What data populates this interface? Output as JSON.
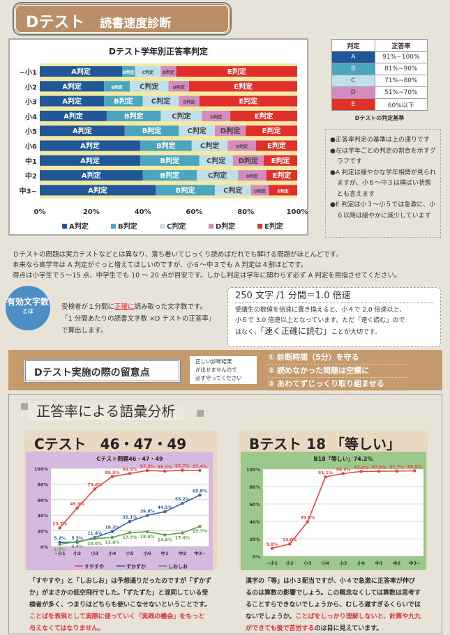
{
  "header": {
    "title": "Dテスト",
    "subtitle": "読書速度診断"
  },
  "criteria": {
    "headers": [
      "判定",
      "正答率"
    ],
    "rows": [
      {
        "grade": "A",
        "range": "91%~100%",
        "color": "#1f5799"
      },
      {
        "grade": "B",
        "range": "81%~90%",
        "color": "#4aa6bf"
      },
      {
        "grade": "C",
        "range": "71%~80%",
        "color": "#bfe0ea"
      },
      {
        "grade": "D",
        "range": "51%~70%",
        "color": "#d68bc0"
      },
      {
        "grade": "E",
        "range": "60%以下",
        "color": "#e1302b"
      }
    ],
    "caption": "Dテストの判定基準"
  },
  "notes": [
    "●正答率判定の基準は上の通りです",
    "●左は学年ごとの判定の割合を示すグラフです",
    "●A 判定は緩やかな学年相関が見られますが、小６～中３は横ばい状態とも言えます",
    "●E 判定は小３～小５では急激に、小６以降は緩やかに減少しています"
  ],
  "paragraph": [
    "Ｄテストの問題は実力テストなどとは異なり、落ち着いてじっくり読めばだれでも解ける問題がほとんどです。",
    "本来なら高学年は A 判定がぐっと増えてほしいのですが、小６～中３でも A 判定は４割ほどです。",
    "得点は小学生で５～15 点、中学生でも 10 ～ 20 点が目安です。しかし判定は学年に関わらず必ず A 判定を目指させてください。"
  ],
  "effective": {
    "badge": "有効文字数",
    "badge_sub": "とは",
    "line1a": "受検者が１分間に",
    "line1red": "正確に",
    "line1b": "読み取った文字数です。",
    "line2": "「1 分間あたりの読書文字数 ×D テストの正答率」",
    "line3": "で算出します。"
  },
  "speed": {
    "heading": "250 文字 /1 分間＝1.0 倍速",
    "text1": "受講生の数値を倍速に置き換えると、小４で 2.0 倍速以上、",
    "text2": "小６で 3.0 倍速以上となっています。ただ「速く読む」ので",
    "text3a": "はなく、",
    "text3big": "「速く正確に読む」",
    "text3b": "ことが大切です。"
  },
  "caution": {
    "title": "Dテスト実施の際の留意点",
    "note": [
      "正しい診断結果",
      "が出せませんので",
      "必ず守ってください"
    ],
    "rules": [
      "① 診断時間（5分）を守る",
      "② 読めなかった問題は空欄に",
      "③ あわてずじっくり取り組ませる"
    ]
  },
  "section": {
    "title": "正答率による語彙分析"
  },
  "c_panel": {
    "title": "Cテスト　46・47・49",
    "text": [
      "「すやすや」と「しおしお」は予想通りだったのですが「ずかず",
      "か」がまさかの低空飛行でした。「ずたずた」と混同している受",
      "検者が多く、つまりはどちらも使いこなせないということです。"
    ],
    "text_red": [
      "ことばを表現として実際に使っていく「実践の機会」をもっと",
      "与えなくてはなりません。"
    ]
  },
  "b_panel": {
    "title": "Bテスト 18 「等しい」",
    "text": [
      "漢字の「等」は小３配当ですが、小４で急激に正答率が伸び",
      "るのは算数の影響でしょう。この概念なくしては算数は思考す",
      "ることすらできないでしょうから、むしろ遅すぎるくらいでは"
    ],
    "text4a": "ないでしょうか。",
    "text4red": "ことばをしっかり理解しないと、計算や九九",
    "text5red": "ができても後で苦労する",
    "text5b": "のは目に見えています。"
  },
  "chart_data": [
    {
      "type": "bar",
      "stacked": true,
      "orientation": "horizontal",
      "title": "Dテスト学年別正答率判定",
      "categories": [
        "~小1",
        "小2",
        "小3",
        "小4",
        "小5",
        "小6",
        "中1",
        "中2",
        "中3~"
      ],
      "xlim": [
        0,
        100
      ],
      "xticks": [
        "0%",
        "20%",
        "40%",
        "60%",
        "80%",
        "100%"
      ],
      "legend_position": "bottom",
      "series": [
        {
          "name": "A判定",
          "label": "A判定",
          "color": "#1f5799",
          "values": [
            32,
            25,
            25,
            26,
            33,
            39,
            39,
            40,
            45
          ]
        },
        {
          "name": "B判定",
          "label": "B判定",
          "color": "#4aa6bf",
          "values": [
            5,
            10,
            15,
            21,
            21,
            20,
            23,
            21,
            23
          ]
        },
        {
          "name": "C判定",
          "label": "C判定",
          "color": "#bfe0ea",
          "values": [
            10,
            15,
            14,
            16,
            14,
            14,
            13,
            16,
            14
          ]
        },
        {
          "name": "D判定",
          "label": "D判定",
          "color": "#d68bc0",
          "values": [
            6,
            8,
            8,
            11,
            12,
            11,
            12,
            11,
            7
          ]
        },
        {
          "name": "E判定",
          "label": "E判定",
          "color": "#e1302b",
          "values": [
            47,
            42,
            38,
            26,
            20,
            16,
            13,
            12,
            11
          ]
        }
      ]
    },
    {
      "type": "line",
      "title": "Cテスト問題46・47・49",
      "categories": [
        "~小1",
        "小2",
        "小3",
        "小4",
        "小5",
        "小6",
        "中1",
        "中2",
        "中3~"
      ],
      "ylim": [
        0,
        100
      ],
      "yticks": [
        "0%",
        "20%",
        "40%",
        "60%",
        "80%",
        "100%"
      ],
      "grid": true,
      "legend_position": "bottom",
      "series": [
        {
          "name": "すやすや",
          "color": "#e2453f",
          "values": [
            23.7,
            49.3,
            73.6,
            89.5,
            93.5,
            97.3,
            96.5,
            97.7,
            97.4
          ],
          "labels": [
            "23.7%",
            "49.3%",
            "73.6%",
            "89.5%",
            "93.5%",
            "97.3%",
            "96.5%",
            "97.7%",
            "97.4%"
          ]
        },
        {
          "name": "ずかずか",
          "color": "#2f5fa8",
          "values": [
            5.2,
            5.5,
            11.4,
            19.3,
            32.1,
            39.8,
            44.5,
            55.2,
            65.8
          ],
          "labels": [
            "5.2%",
            "5.5%",
            "11.4%",
            "19.3%",
            "32.1%",
            "39.8%",
            "44.5%",
            "55.2%",
            "65.8%"
          ]
        },
        {
          "name": "しおしお",
          "color": "#5c9e4a",
          "values": [
            2.8,
            6.4,
            10.0,
            11.6,
            17.7,
            18.9,
            14.8,
            17.4,
            25.7
          ],
          "labels": [
            "2.8%",
            "6.4%",
            "10.0%",
            "11.6%",
            "17.7%",
            "18.9%",
            "14.8%",
            "17.4%",
            "25.7%"
          ]
        }
      ]
    },
    {
      "type": "line",
      "title": "B18「等しい」74.2%",
      "categories": [
        "~小1",
        "小2",
        "小3",
        "小4",
        "小5",
        "小6",
        "中1",
        "中2",
        "中3~"
      ],
      "ylim": [
        0,
        100
      ],
      "yticks": [
        "0%",
        "20%",
        "40%",
        "60%",
        "80%",
        "100%"
      ],
      "grid": true,
      "series": [
        {
          "color": "#e2453f",
          "values": [
            9.0,
            14.0,
            39.5,
            91.1,
            94.9,
            97.3,
            97.5,
            97.7,
            98.0
          ],
          "labels": [
            "9.0%",
            "14.0%",
            "39.5%",
            "91.1%",
            "94.9%",
            "97.3%",
            "97.5%",
            "97.7%",
            "98.0%"
          ]
        }
      ]
    }
  ]
}
